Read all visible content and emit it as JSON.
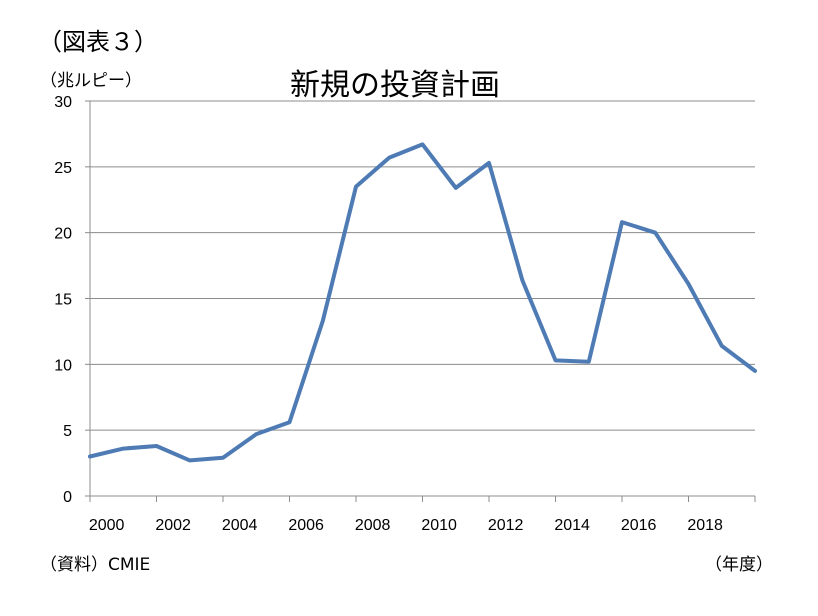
{
  "figure_label": "（図表３）",
  "unit_label": "（兆ルピー）",
  "source_label": "（資料）CMIE",
  "x_unit_label": "（年度）",
  "chart_data": {
    "type": "line",
    "title": "新規の投資計画",
    "xlabel": "",
    "ylabel": "",
    "x": [
      2000,
      2001,
      2002,
      2003,
      2004,
      2005,
      2006,
      2007,
      2008,
      2009,
      2010,
      2011,
      2012,
      2013,
      2014,
      2015,
      2016,
      2017,
      2018,
      2019,
      2020
    ],
    "series": [
      {
        "values": [
          3.0,
          3.6,
          3.8,
          2.7,
          2.9,
          4.7,
          5.6,
          13.3,
          23.5,
          25.7,
          26.7,
          23.4,
          25.3,
          16.4,
          10.3,
          10.2,
          20.8,
          20.0,
          16.1,
          11.4,
          9.5
        ],
        "color": "#4f7bb5"
      }
    ],
    "ylim": [
      0,
      30
    ],
    "yticks": [
      "0",
      "5",
      "10",
      "15",
      "20",
      "25",
      "30"
    ],
    "xticks": [
      "2000",
      "2002",
      "2004",
      "2006",
      "2008",
      "2010",
      "2012",
      "2014",
      "2016",
      "2018"
    ],
    "grid": true,
    "legend": "none"
  }
}
